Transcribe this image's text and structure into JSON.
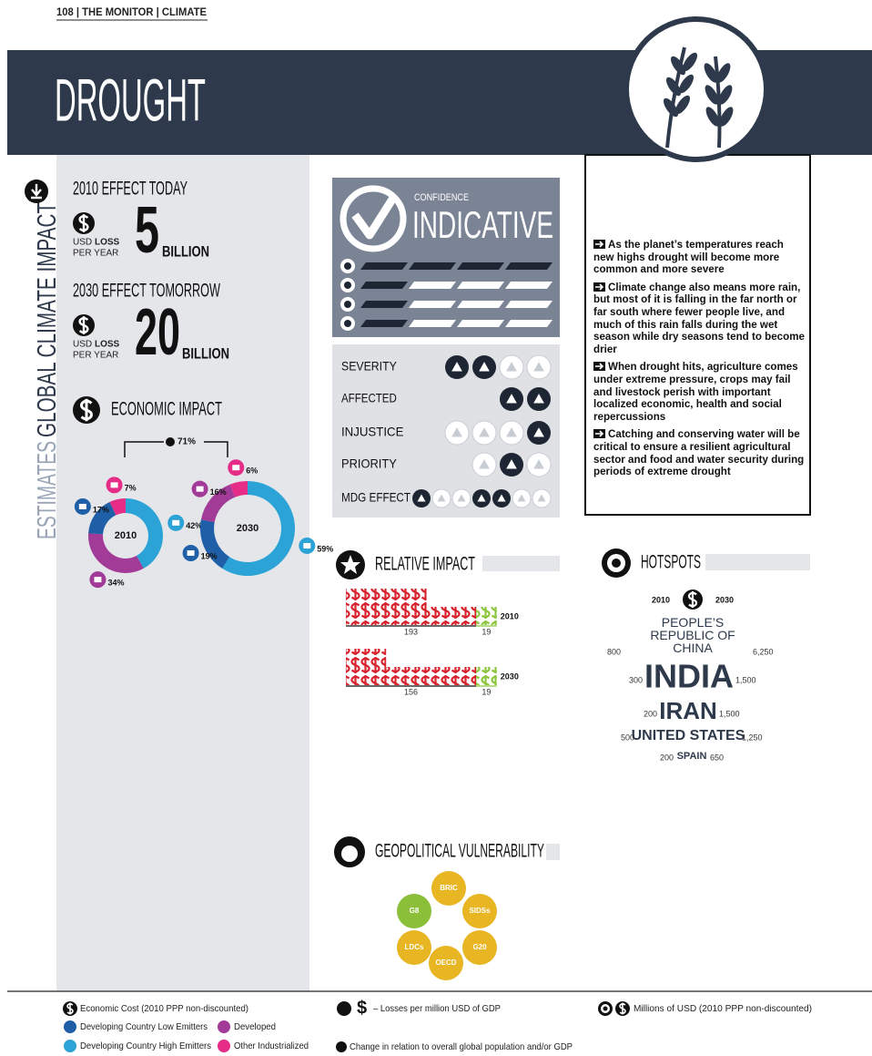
{
  "header": {
    "running_head": "108 | THE MONITOR | CLIMATE",
    "title": "DROUGHT"
  },
  "side_label": {
    "prefix": "ESTIMATES",
    "main": "GLOBAL CLIMATE IMPACT"
  },
  "effects": [
    {
      "heading": "2010 EFFECT TODAY",
      "currency": "USD",
      "loss": "LOSS",
      "period": "PER YEAR",
      "amount": 5,
      "scale": "BILLION"
    },
    {
      "heading": "2030 EFFECT TOMORROW",
      "currency": "USD",
      "loss": "LOSS",
      "period": "PER YEAR",
      "amount": 20,
      "scale": "BILLION"
    }
  ],
  "economic_impact": {
    "title": "ECONOMIC IMPACT",
    "change": "71%",
    "donuts": [
      {
        "year": "2010",
        "segments": [
          {
            "value": 42,
            "label": "42%",
            "color": "#2ba3d6"
          },
          {
            "value": 34,
            "label": "34%",
            "color": "#a23a97"
          },
          {
            "value": 17,
            "label": "17%",
            "color": "#1f5fa8"
          },
          {
            "value": 7,
            "label": "7%",
            "color": "#e52c87"
          }
        ]
      },
      {
        "year": "2030",
        "segments": [
          {
            "value": 59,
            "label": "59%",
            "color": "#2ba3d6"
          },
          {
            "value": 19,
            "label": "19%",
            "color": "#1f5fa8"
          },
          {
            "value": 16,
            "label": "16%",
            "color": "#a23a97"
          },
          {
            "value": 6,
            "label": "6%",
            "color": "#e52c87"
          }
        ]
      }
    ]
  },
  "confidence": {
    "label": "CONFIDENCE",
    "level": "INDICATIVE"
  },
  "ratings": [
    "SEVERITY",
    "AFFECTED",
    "INJUSTICE",
    "PRIORITY",
    "MDG EFFECT"
  ],
  "bullets": [
    "As the planet’s temperatures reach new highs drought will become more common and more severe",
    "Climate change also means more rain, but most of it is falling in the far north or far south where fewer people live, and much of this rain falls during the wet season while dry seasons tend to become drier",
    "When drought hits, agriculture comes under extreme pressure, crops may fail and livestock perish with important localized economic, health and social repercussions",
    "Catching and conserving water will be critical to ensure a resilient agricultural sector and food and water security during periods of extreme drought"
  ],
  "relative_impact": {
    "title": "RELATIVE IMPACT",
    "colors": [
      "#d7232e",
      "#8cc63f"
    ],
    "rows": [
      {
        "year": "2010",
        "values": [
          193,
          19
        ]
      },
      {
        "year": "2030",
        "values": [
          156,
          19
        ]
      }
    ]
  },
  "hotspots": {
    "title": "HOTSPOTS",
    "years": [
      "2010",
      "2030"
    ],
    "countries": [
      {
        "name": "PEOPLE’S REPUBLIC OF CHINA",
        "values": [
          800,
          {
            "value": 6250,
            "label": "6,250"
          }
        ]
      },
      {
        "name": "INDIA",
        "values": [
          300,
          {
            "value": 1500,
            "label": "1,500"
          }
        ]
      },
      {
        "name": "IRAN",
        "values": [
          200,
          {
            "value": 1500,
            "label": "1,500"
          }
        ]
      },
      {
        "name": "UNITED STATES",
        "values": [
          500,
          {
            "value": 1250,
            "label": "1,250"
          }
        ]
      },
      {
        "name": "SPAIN",
        "values": [
          200,
          650
        ]
      }
    ]
  },
  "geopolitical": {
    "title": "GEOPOLITICAL VULNERABILITY",
    "groups": [
      {
        "name": "BRIC",
        "color": "#e8b523"
      },
      {
        "name": "SIDSs",
        "color": "#e8b523"
      },
      {
        "name": "G20",
        "color": "#e8b523"
      },
      {
        "name": "OECD",
        "color": "#e8b523"
      },
      {
        "name": "LDCs",
        "color": "#e8b523"
      },
      {
        "name": "G8",
        "color": "#8bbf3a"
      }
    ]
  },
  "legend": {
    "economic_cost": "Economic Cost (2010 PPP non-discounted)",
    "low_emitters": "Developing Country Low Emitters",
    "developed": "Developed",
    "high_emitters": "Developing Country High Emitters",
    "other_industrialized": "Other Industrialized",
    "losses_symbol": "$",
    "losses": "– Losses per million USD of GDP",
    "millions": "Millions of USD (2010 PPP non-discounted)",
    "change": "Change in relation to overall global population and/or GDP"
  }
}
